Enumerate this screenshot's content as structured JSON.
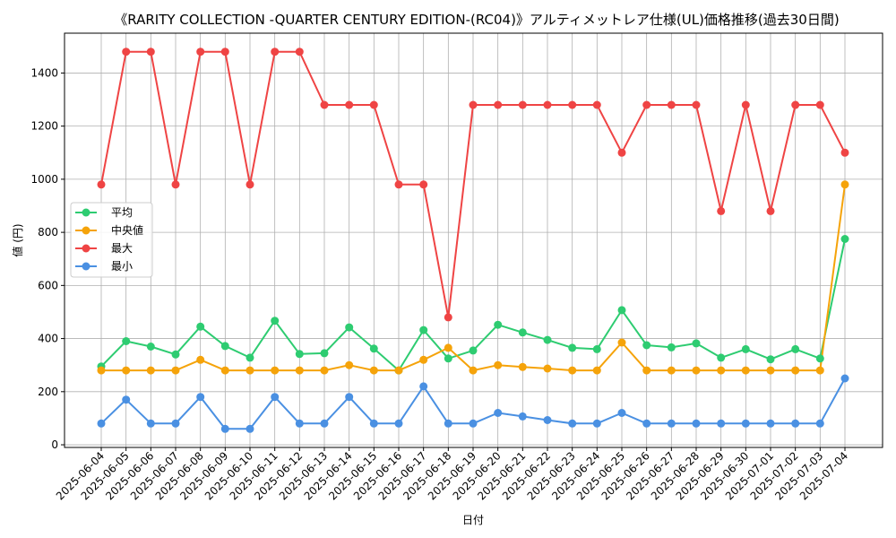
{
  "chart_data": {
    "type": "line",
    "title": "《RARITY COLLECTION -QUARTER CENTURY EDITION-(RC04)》アルティメットレア仕様(UL)価格推移(過去30日間)",
    "xlabel": "日付",
    "ylabel": "値 (円)",
    "ylim": [
      -10,
      1550
    ],
    "yticks": [
      0,
      200,
      400,
      600,
      800,
      1000,
      1200,
      1400
    ],
    "grid": true,
    "legend_position": "center-left",
    "categories": [
      "2025-06-04",
      "2025-06-05",
      "2025-06-06",
      "2025-06-07",
      "2025-06-08",
      "2025-06-09",
      "2025-06-10",
      "2025-06-11",
      "2025-06-12",
      "2025-06-13",
      "2025-06-14",
      "2025-06-15",
      "2025-06-16",
      "2025-06-17",
      "2025-06-18",
      "2025-06-19",
      "2025-06-20",
      "2025-06-21",
      "2025-06-22",
      "2025-06-23",
      "2025-06-24",
      "2025-06-25",
      "2025-06-26",
      "2025-06-27",
      "2025-06-28",
      "2025-06-29",
      "2025-06-30",
      "2025-07-01",
      "2025-07-02",
      "2025-07-03",
      "2025-07-04"
    ],
    "series": [
      {
        "name": "平均",
        "color": "#2ecc71",
        "values": [
          295,
          390,
          370,
          340,
          445,
          372,
          328,
          467,
          342,
          345,
          442,
          362,
          280,
          432,
          325,
          355,
          452,
          423,
          395,
          365,
          360,
          507,
          375,
          367,
          382,
          328,
          360,
          322,
          360,
          325,
          775
        ]
      },
      {
        "name": "中央値",
        "color": "#f5a30a",
        "values": [
          280,
          280,
          280,
          280,
          320,
          280,
          280,
          280,
          280,
          280,
          300,
          280,
          280,
          320,
          365,
          280,
          300,
          293,
          287,
          280,
          280,
          385,
          280,
          280,
          280,
          280,
          280,
          280,
          280,
          280,
          980
        ]
      },
      {
        "name": "最大",
        "color": "#ef4444",
        "values": [
          980,
          1480,
          1480,
          980,
          1480,
          1480,
          980,
          1480,
          1480,
          1280,
          1280,
          1280,
          980,
          980,
          480,
          1280,
          1280,
          1280,
          1280,
          1280,
          1280,
          1100,
          1280,
          1280,
          1280,
          880,
          1280,
          880,
          1280,
          1280,
          1100
        ]
      },
      {
        "name": "最小",
        "color": "#4a90e2",
        "values": [
          80,
          170,
          80,
          80,
          180,
          60,
          60,
          180,
          80,
          80,
          180,
          80,
          80,
          220,
          80,
          80,
          120,
          107,
          93,
          80,
          80,
          120,
          80,
          80,
          80,
          80,
          80,
          80,
          80,
          80,
          250
        ]
      }
    ]
  }
}
